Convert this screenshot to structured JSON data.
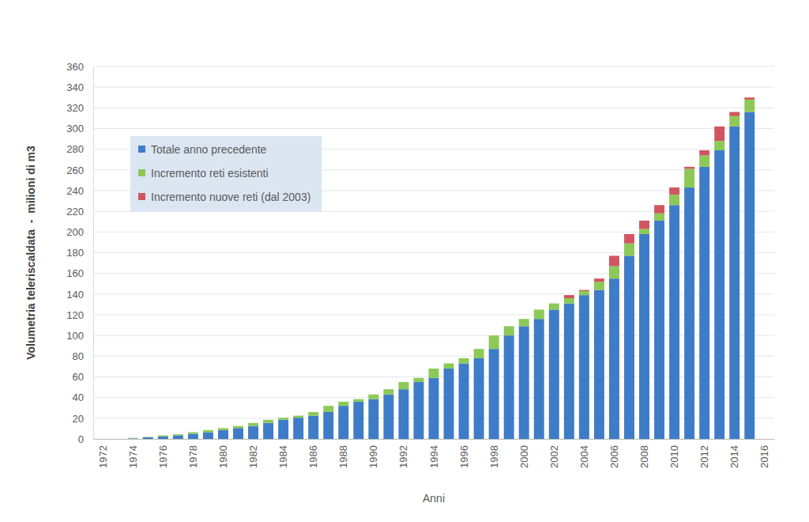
{
  "chart_data": {
    "type": "bar",
    "stacked": true,
    "grid": true,
    "legend": "upper left",
    "x_label": "Anni",
    "y_label": "Volumetria teleriscaldata  -  milioni di m3",
    "categories": [
      "1972",
      null,
      "1974",
      null,
      "1976",
      null,
      "1978",
      null,
      "1980",
      null,
      "1982",
      null,
      "1984",
      null,
      "1986",
      null,
      "1988",
      null,
      "1990",
      null,
      "1992",
      null,
      "1994",
      null,
      "1996",
      null,
      "1998",
      null,
      "2000",
      null,
      "2002",
      null,
      "2004",
      null,
      "2006",
      null,
      "2008",
      null,
      "2010",
      null,
      "2012",
      null,
      "2014",
      null,
      "2016"
    ],
    "ylim": [
      0,
      360
    ],
    "yticks": [
      0,
      20,
      40,
      60,
      80,
      100,
      120,
      140,
      160,
      180,
      200,
      220,
      240,
      260,
      280,
      300,
      320,
      340,
      360
    ],
    "series": [
      {
        "name": "Totale anno precedente",
        "color": "#3f7cc8",
        "values": [
          0,
          0,
          0.5,
          1.5,
          2.5,
          3.5,
          5,
          6.5,
          8.5,
          10.5,
          12.5,
          15.5,
          18.5,
          20.5,
          22.5,
          26,
          32,
          36,
          38.5,
          43,
          48,
          55,
          59,
          68,
          73,
          78,
          87,
          100,
          109,
          116,
          125,
          131,
          139,
          144,
          155,
          177,
          198,
          211,
          226,
          243,
          263,
          279,
          302,
          316,
          null
        ]
      },
      {
        "name": "Incremento reti esistenti",
        "color": "#8cc957",
        "values": [
          0,
          0,
          0.5,
          0.5,
          1,
          1,
          1.5,
          2,
          2,
          2,
          3,
          3,
          2,
          2,
          3.5,
          6,
          4,
          2.5,
          4.5,
          5,
          7,
          4,
          9,
          5,
          5,
          9,
          13,
          9,
          7,
          9,
          6,
          5,
          4,
          8,
          12,
          12,
          5,
          7,
          10,
          18,
          11,
          9,
          10,
          12,
          null
        ]
      },
      {
        "name": "Incremento nuove reti (dal 2003)",
        "color": "#d05560",
        "values": [
          null,
          null,
          null,
          null,
          null,
          null,
          null,
          null,
          null,
          null,
          null,
          null,
          null,
          null,
          null,
          null,
          null,
          null,
          null,
          null,
          null,
          null,
          null,
          null,
          null,
          null,
          null,
          null,
          null,
          null,
          null,
          3,
          1,
          3,
          10,
          9,
          8,
          8,
          7,
          2,
          5,
          14,
          4,
          2,
          null
        ]
      }
    ]
  }
}
